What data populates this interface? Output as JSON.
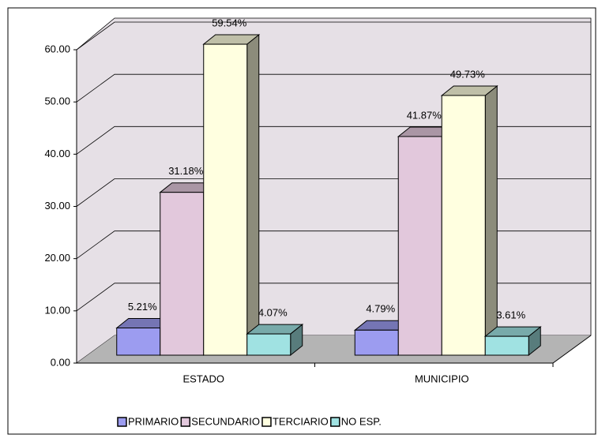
{
  "chart_data": {
    "type": "bar3d",
    "categories": [
      "ESTADO",
      "MUNICIPIO"
    ],
    "series": [
      {
        "name": "PRIMARIO",
        "color": "#9c9cf0",
        "values": [
          5.21,
          4.79
        ],
        "value_labels": [
          "5.21%",
          "4.79%"
        ]
      },
      {
        "name": "SECUNDARIO",
        "color": "#e2c8dc",
        "values": [
          31.18,
          41.87
        ],
        "value_labels": [
          "31.18%",
          "41.87%"
        ]
      },
      {
        "name": "TERCIARIO",
        "color": "#ffffe0",
        "values": [
          59.54,
          49.73
        ],
        "value_labels": [
          "59.54%",
          "49.73%"
        ]
      },
      {
        "name": "NO ESP.",
        "color": "#a0e2e2",
        "values": [
          4.07,
          3.61
        ],
        "value_labels": [
          "4.07%",
          "3.61%"
        ]
      }
    ],
    "ylim": [
      0,
      60
    ],
    "yticks": [
      {
        "value": 0,
        "label": "0.00"
      },
      {
        "value": 10,
        "label": "10.00"
      },
      {
        "value": 20,
        "label": "20.00"
      },
      {
        "value": 30,
        "label": "30.00"
      },
      {
        "value": 40,
        "label": "40.00"
      },
      {
        "value": 50,
        "label": "50.00"
      },
      {
        "value": 60,
        "label": "60.00"
      }
    ],
    "grid": true,
    "legend": "bottom"
  }
}
